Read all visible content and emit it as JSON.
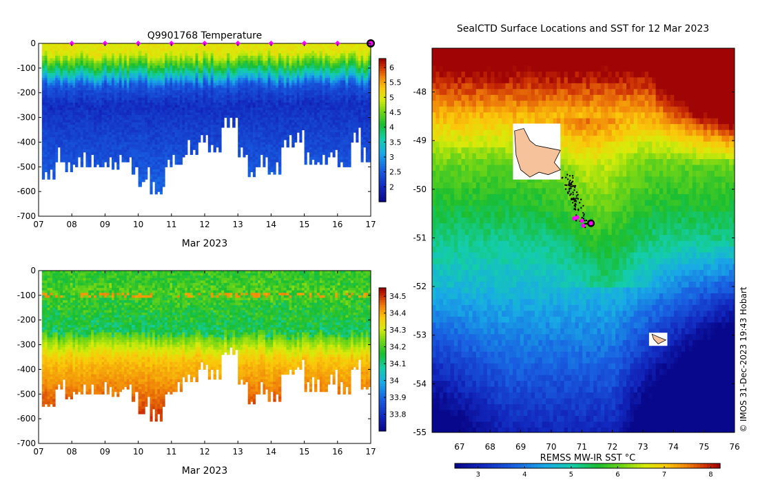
{
  "temperature_panel": {
    "title": "Q9901768  Temperature",
    "xlabel": "Mar 2023"
  },
  "salinity_panel": {
    "title": "",
    "xlabel": "Mar 2023"
  },
  "map_panel": {
    "title": "SealCTD Surface Locations and SST for 12 Mar 2023",
    "colorbar_label": "REMSS MW-IR SST °C",
    "credit": "© IMOS 31-Dec-2023 19:43 Hobart"
  },
  "colors": {
    "land": "#f6c29c",
    "track": "#000000",
    "highlight": "#ff00ff",
    "frame": "#000000"
  },
  "chart_data": [
    {
      "type": "heatmap",
      "title": "Q9901768  Temperature",
      "xlabel": "Mar 2023",
      "ylabel": "",
      "x_ticks": [
        7,
        8,
        9,
        10,
        11,
        12,
        13,
        14,
        15,
        16,
        17
      ],
      "x_tick_labels": [
        "07",
        "08",
        "09",
        "10",
        "11",
        "12",
        "13",
        "14",
        "15",
        "16",
        "17"
      ],
      "xlim": [
        7,
        17
      ],
      "y_ticks": [
        0,
        -100,
        -200,
        -300,
        -400,
        -500,
        -600,
        -700
      ],
      "y_tick_labels": [
        "0",
        "-100",
        "-200",
        "-300",
        "-400",
        "-500",
        "-600",
        "-700"
      ],
      "ylim": [
        -700,
        0
      ],
      "colorbar": {
        "vmin": 1.5,
        "vmax": 6.3,
        "ticks": [
          2,
          2.5,
          3,
          3.5,
          4,
          4.5,
          5,
          5.5,
          6
        ],
        "tick_labels": [
          "2",
          "2.5",
          "3",
          "3.5",
          "4",
          "4.5",
          "5",
          "5.5",
          "6"
        ]
      },
      "surface_markers_days": [
        8,
        9,
        10,
        11,
        12,
        13,
        14,
        15,
        16
      ],
      "latest_marker_day": 17,
      "profile_max_depths": [
        [
          7.1,
          550
        ],
        [
          7.5,
          480
        ],
        [
          7.8,
          520
        ],
        [
          8.1,
          500
        ],
        [
          8.5,
          500
        ],
        [
          8.9,
          500
        ],
        [
          9.2,
          510
        ],
        [
          9.5,
          480
        ],
        [
          9.8,
          530
        ],
        [
          10.0,
          580
        ],
        [
          10.2,
          550
        ],
        [
          10.35,
          610
        ],
        [
          10.8,
          500
        ],
        [
          11.1,
          490
        ],
        [
          11.4,
          450
        ],
        [
          11.8,
          400
        ],
        [
          12.1,
          440
        ],
        [
          12.5,
          340
        ],
        [
          13.0,
          460
        ],
        [
          13.3,
          540
        ],
        [
          13.6,
          500
        ],
        [
          13.9,
          530
        ],
        [
          14.3,
          420
        ],
        [
          14.7,
          400
        ],
        [
          15.0,
          490
        ],
        [
          15.3,
          490
        ],
        [
          15.7,
          460
        ],
        [
          16.0,
          500
        ],
        [
          16.4,
          400
        ],
        [
          16.7,
          480
        ],
        [
          17.0,
          380
        ]
      ]
    },
    {
      "type": "heatmap",
      "title": "",
      "xlabel": "Mar 2023",
      "ylabel": "",
      "x_ticks": [
        7,
        8,
        9,
        10,
        11,
        12,
        13,
        14,
        15,
        16,
        17
      ],
      "x_tick_labels": [
        "07",
        "08",
        "09",
        "10",
        "11",
        "12",
        "13",
        "14",
        "15",
        "16",
        "17"
      ],
      "xlim": [
        7,
        17
      ],
      "y_ticks": [
        0,
        -100,
        -200,
        -300,
        -400,
        -500,
        -600,
        -700
      ],
      "y_tick_labels": [
        "0",
        "-100",
        "-200",
        "-300",
        "-400",
        "-500",
        "-600",
        "-700"
      ],
      "ylim": [
        -700,
        0
      ],
      "colorbar": {
        "vmin": 33.7,
        "vmax": 34.55,
        "ticks": [
          33.8,
          33.9,
          34,
          34.1,
          34.2,
          34.3,
          34.4,
          34.5
        ],
        "tick_labels": [
          "33.8",
          "33.9",
          "34",
          "34.1",
          "34.2",
          "34.3",
          "34.4",
          "34.5"
        ]
      },
      "profile_max_depths": [
        [
          7.1,
          550
        ],
        [
          7.5,
          480
        ],
        [
          7.8,
          520
        ],
        [
          8.1,
          500
        ],
        [
          8.5,
          500
        ],
        [
          8.9,
          500
        ],
        [
          9.2,
          510
        ],
        [
          9.5,
          480
        ],
        [
          9.8,
          530
        ],
        [
          10.0,
          580
        ],
        [
          10.2,
          550
        ],
        [
          10.35,
          610
        ],
        [
          10.8,
          500
        ],
        [
          11.1,
          490
        ],
        [
          11.4,
          450
        ],
        [
          11.8,
          400
        ],
        [
          12.1,
          440
        ],
        [
          12.5,
          340
        ],
        [
          13.0,
          460
        ],
        [
          13.3,
          540
        ],
        [
          13.6,
          500
        ],
        [
          13.9,
          530
        ],
        [
          14.3,
          420
        ],
        [
          14.7,
          400
        ],
        [
          15.0,
          490
        ],
        [
          15.3,
          490
        ],
        [
          15.7,
          460
        ],
        [
          16.0,
          500
        ],
        [
          16.4,
          400
        ],
        [
          16.7,
          480
        ],
        [
          17.0,
          380
        ]
      ]
    },
    {
      "type": "heatmap",
      "title": "SealCTD Surface Locations and SST for 12 Mar 2023",
      "xlabel": "",
      "ylabel": "",
      "x_ticks": [
        67,
        68,
        69,
        70,
        71,
        72,
        73,
        74,
        75,
        76
      ],
      "x_tick_labels": [
        "67",
        "68",
        "69",
        "70",
        "71",
        "72",
        "73",
        "74",
        "75",
        "76"
      ],
      "xlim": [
        66.1,
        76.0
      ],
      "y_ticks": [
        -48,
        -49,
        -50,
        -51,
        -52,
        -53,
        -54,
        -55
      ],
      "y_tick_labels": [
        "-48",
        "-49",
        "-50",
        "-51",
        "-52",
        "-53",
        "-54",
        "-55"
      ],
      "ylim": [
        -55.0,
        -47.1
      ],
      "colorbar": {
        "vmin": 2.5,
        "vmax": 8.2,
        "ticks": [
          3,
          4,
          5,
          6,
          7,
          8
        ],
        "tick_labels": [
          "3",
          "4",
          "5",
          "6",
          "7",
          "8"
        ],
        "label": "REMSS MW-IR SST °C"
      },
      "track_end": {
        "lon": 71.3,
        "lat": -50.7
      },
      "track_magenta": [
        [
          70.85,
          -50.58
        ],
        [
          71.0,
          -50.65
        ],
        [
          71.05,
          -50.75
        ],
        [
          70.75,
          -50.6
        ]
      ]
    }
  ]
}
